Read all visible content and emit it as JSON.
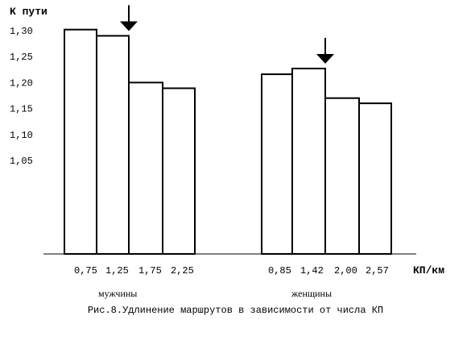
{
  "chart_data": {
    "type": "bar",
    "ylabel": "К пути",
    "xlabel": "КП/км",
    "y_ticks": [
      "1,30",
      "1,25",
      "1,20",
      "1,15",
      "1,10",
      "1,05"
    ],
    "y_tick_values": [
      1.3,
      1.25,
      1.2,
      1.15,
      1.1,
      1.05
    ],
    "grid": false,
    "groups": [
      {
        "label": "мужчины",
        "categories": [
          "0,75",
          "1,25",
          "1,75",
          "2,25"
        ],
        "values": [
          1.302,
          1.29,
          1.2,
          1.189
        ],
        "arrow_at_boundary": 1
      },
      {
        "label": "женщины",
        "categories": [
          "0,85",
          "1,42",
          "2,00",
          "2,57"
        ],
        "values": [
          1.216,
          1.227,
          1.17,
          1.16
        ],
        "arrow_at_boundary": 1
      }
    ]
  },
  "caption": "Рис.8.Удлинение маршрутов в зависимости от числа КП"
}
